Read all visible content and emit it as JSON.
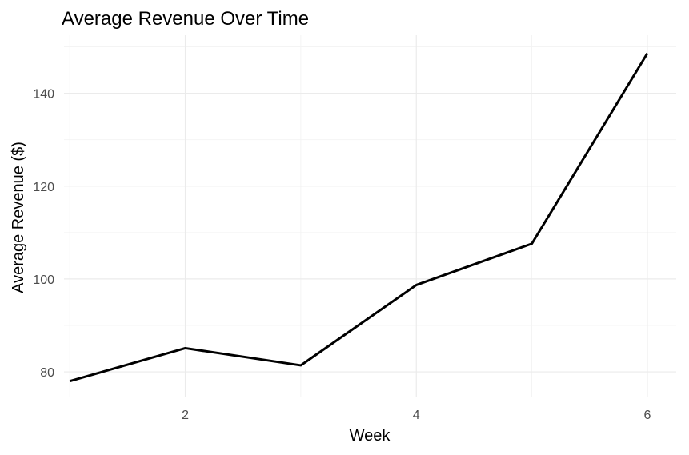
{
  "chart_data": {
    "type": "line",
    "title": "Average Revenue Over Time",
    "xlabel": "Week",
    "ylabel": "Average Revenue ($)",
    "x": [
      1,
      2,
      3,
      4,
      5,
      6
    ],
    "series": [
      {
        "values": [
          78.0,
          85.1,
          81.4,
          98.7,
          107.6,
          148.6
        ],
        "color": "#000000"
      }
    ],
    "xlim": [
      0.95,
      6.25
    ],
    "ylim": [
      74.5,
      152.5
    ],
    "x_ticks": [
      2,
      4,
      6
    ],
    "x_tick_labels": [
      "2",
      "4",
      "6"
    ],
    "x_minor_ticks": [
      1,
      3,
      5
    ],
    "y_ticks": [
      80,
      100,
      120,
      140
    ],
    "y_tick_labels": [
      "80",
      "100",
      "120",
      "140"
    ],
    "y_minor_ticks": [
      90,
      110,
      130,
      150
    ],
    "grid": true,
    "legend": "none",
    "theme": "minimal"
  }
}
